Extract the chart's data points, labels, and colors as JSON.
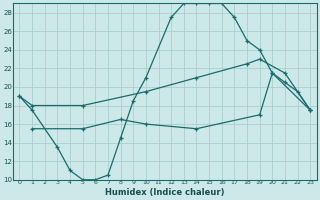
{
  "xlabel": "Humidex (Indice chaleur)",
  "bg_color": "#cce8e8",
  "grid_color": "#aacfcf",
  "line_color": "#1a6b6b",
  "xlim": [
    -0.5,
    23.5
  ],
  "ylim": [
    10,
    29
  ],
  "xticks": [
    0,
    1,
    2,
    3,
    4,
    5,
    6,
    7,
    8,
    9,
    10,
    11,
    12,
    13,
    14,
    15,
    16,
    17,
    18,
    19,
    20,
    21,
    22,
    23
  ],
  "yticks": [
    10,
    12,
    14,
    16,
    18,
    20,
    22,
    24,
    26,
    28
  ],
  "curve1_x": [
    0,
    1,
    3,
    4,
    5,
    6,
    7,
    8,
    9,
    10,
    12,
    13,
    14,
    15,
    16,
    17,
    18,
    19,
    20,
    21,
    22,
    23
  ],
  "curve1_y": [
    19,
    17.5,
    13.5,
    11,
    10,
    10,
    10.5,
    14.5,
    18.5,
    21,
    27.5,
    29,
    29,
    29,
    29,
    27.5,
    25,
    24,
    21.5,
    20.5,
    19.5,
    17.5
  ],
  "curve2_x": [
    0,
    1,
    5,
    10,
    14,
    18,
    19,
    21,
    23
  ],
  "curve2_y": [
    19,
    18,
    18,
    19.5,
    21,
    22.5,
    23,
    21.5,
    17.5
  ],
  "curve3_x": [
    1,
    5,
    8,
    10,
    14,
    19,
    20,
    23
  ],
  "curve3_y": [
    15.5,
    15.5,
    16.5,
    16,
    15.5,
    17,
    21.5,
    17.5
  ]
}
